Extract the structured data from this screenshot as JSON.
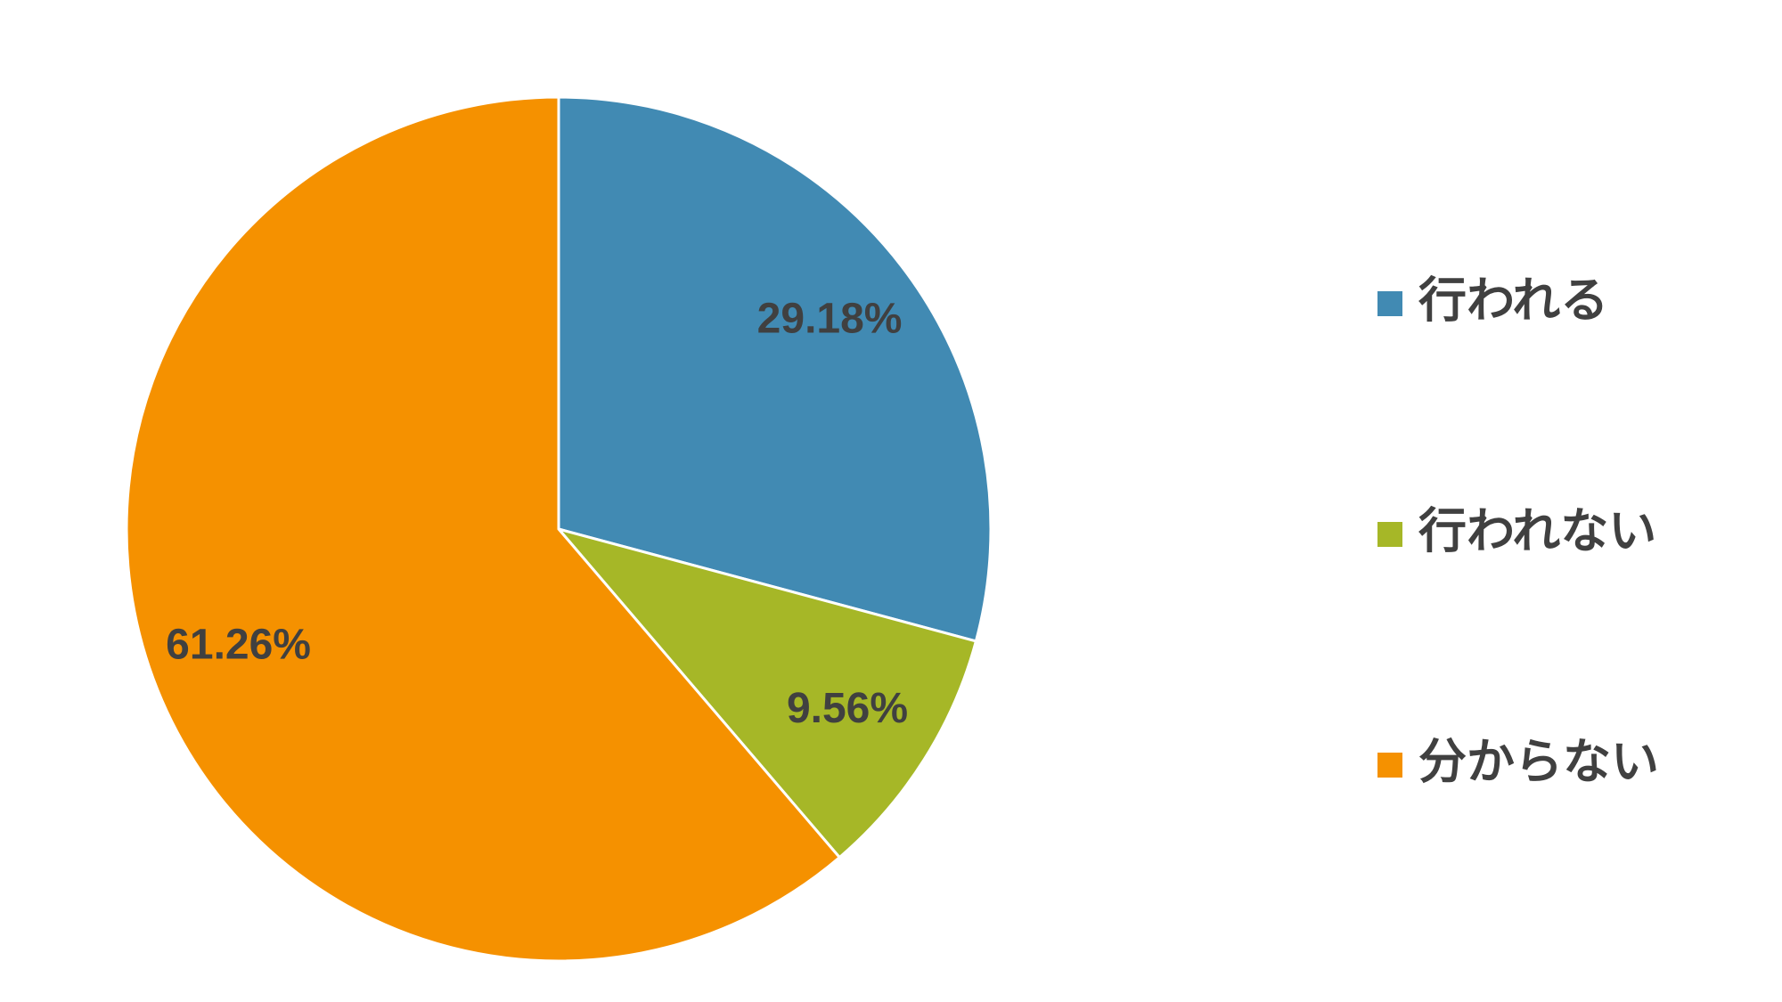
{
  "chart_data": {
    "type": "pie",
    "categories": [
      "行われる",
      "行われない",
      "分からない"
    ],
    "values": [
      29.18,
      9.56,
      61.26
    ],
    "value_labels": [
      "29.18%",
      "9.56%",
      "61.26%"
    ],
    "colors": [
      "#418ab3",
      "#a6b727",
      "#f59100"
    ],
    "legend": "right"
  }
}
